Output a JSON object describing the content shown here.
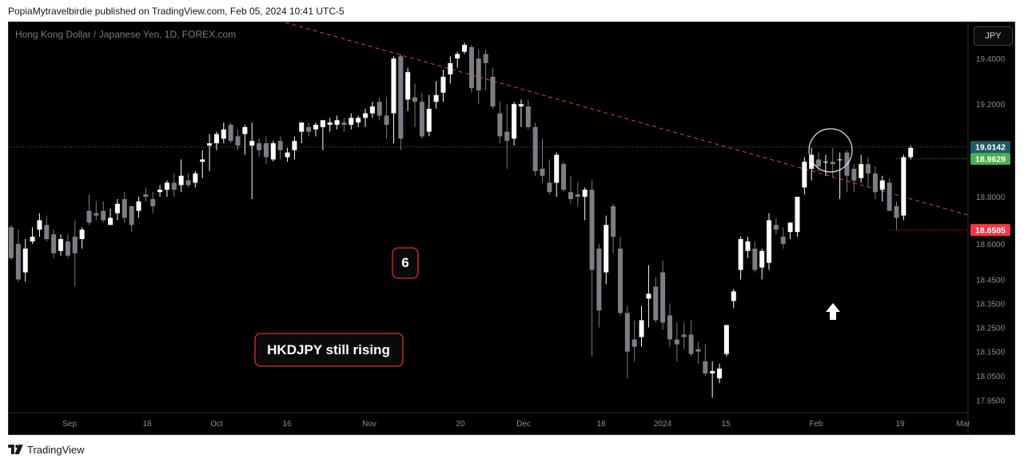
{
  "header": {
    "publisher_line": "PopiaMytravelbirdie published on TradingView.com, Feb 05, 2024 10:41 UTC-5"
  },
  "symbol_title": "Hong Kong Dollar / Japanese Yen, 1D, FOREX.com",
  "currency_button": "JPY",
  "footer": {
    "brand": "TradingView",
    "logo_icon": "tradingview-logo-icon"
  },
  "colors": {
    "background": "#000000",
    "candle_up": "#ffffff",
    "candle_down": "#7d7d85",
    "trendline": "#e0443a",
    "current_price_label": "#1e5a6b",
    "green_label": "#4caf50",
    "red_label": "#f23645",
    "annotation_border": "#e32b2b"
  },
  "chart_data": {
    "type": "candlestick",
    "title": "Hong Kong Dollar / Japanese Yen, 1D, FOREX.com",
    "ylim": [
      17.9,
      19.56
    ],
    "y_scale": "log",
    "y_ticks": [
      "19.4000",
      "19.2000",
      "18.8000",
      "18.6000",
      "18.4500",
      "18.3500",
      "18.2500",
      "18.1500",
      "18.0500",
      "17.9500"
    ],
    "x_ticks": [
      "Sep",
      "18",
      "Oct",
      "16",
      "Nov",
      "20",
      "Dec",
      "18",
      "2024",
      "15",
      "Feb",
      "19",
      "Mar"
    ],
    "price_labels": [
      {
        "text": "19.0142",
        "value": 19.0142,
        "role": "current"
      },
      {
        "text": "18.9629",
        "value": 18.9629,
        "role": "green"
      },
      {
        "text": "18.6585",
        "value": 18.6585,
        "role": "red"
      }
    ],
    "annotations": [
      {
        "text": "6"
      },
      {
        "text": "HKDJPY still rising"
      }
    ],
    "grid": false,
    "candles": [
      [
        18.67,
        18.68,
        18.53,
        18.54
      ],
      [
        18.6,
        18.66,
        18.44,
        18.45
      ],
      [
        18.48,
        18.62,
        18.44,
        18.58
      ],
      [
        18.61,
        18.67,
        18.6,
        18.63
      ],
      [
        18.66,
        18.73,
        18.63,
        18.7
      ],
      [
        18.68,
        18.72,
        18.61,
        18.62
      ],
      [
        18.64,
        18.66,
        18.54,
        18.56
      ],
      [
        18.57,
        18.64,
        18.55,
        18.62
      ],
      [
        18.61,
        18.64,
        18.54,
        18.55
      ],
      [
        18.63,
        18.7,
        18.42,
        18.56
      ],
      [
        18.62,
        18.67,
        18.58,
        18.66
      ],
      [
        18.74,
        18.81,
        18.68,
        18.69
      ],
      [
        18.73,
        18.78,
        18.7,
        18.72
      ],
      [
        18.74,
        18.78,
        18.69,
        18.7
      ],
      [
        18.68,
        18.75,
        18.69,
        18.71
      ],
      [
        18.73,
        18.79,
        18.7,
        18.77
      ],
      [
        18.79,
        18.82,
        18.69,
        18.71
      ],
      [
        18.76,
        18.76,
        18.65,
        18.68
      ],
      [
        18.74,
        18.8,
        18.71,
        18.78
      ],
      [
        18.81,
        18.84,
        18.78,
        18.8
      ],
      [
        18.79,
        18.82,
        18.73,
        18.76
      ],
      [
        18.82,
        18.85,
        18.8,
        18.83
      ],
      [
        18.83,
        18.87,
        18.8,
        18.86
      ],
      [
        18.86,
        18.9,
        18.8,
        18.83
      ],
      [
        18.85,
        18.96,
        18.82,
        18.89
      ],
      [
        18.87,
        18.9,
        18.84,
        18.85
      ],
      [
        18.86,
        18.91,
        18.84,
        18.9
      ],
      [
        18.95,
        19.0,
        18.88,
        18.96
      ],
      [
        19.02,
        19.07,
        18.91,
        19.03
      ],
      [
        19.03,
        19.08,
        19.0,
        19.07
      ],
      [
        19.05,
        19.12,
        19.03,
        19.09
      ],
      [
        19.11,
        19.12,
        19.03,
        19.04
      ],
      [
        19.06,
        19.09,
        19.0,
        19.02
      ],
      [
        19.07,
        19.11,
        18.98,
        19.1
      ],
      [
        19.02,
        19.12,
        18.79,
        19.04
      ],
      [
        19.03,
        19.05,
        18.97,
        19.0
      ],
      [
        19.03,
        19.06,
        18.94,
        18.97
      ],
      [
        18.96,
        19.04,
        18.95,
        19.03
      ],
      [
        19.04,
        19.06,
        18.96,
        19.0
      ],
      [
        18.97,
        19.01,
        18.95,
        18.99
      ],
      [
        19.0,
        19.06,
        18.96,
        19.04
      ],
      [
        19.08,
        19.11,
        19.03,
        19.12
      ],
      [
        19.1,
        19.12,
        19.06,
        19.08
      ],
      [
        19.09,
        19.12,
        19.06,
        19.11
      ],
      [
        19.1,
        19.13,
        19.0,
        19.13
      ],
      [
        19.11,
        19.14,
        19.08,
        19.12
      ],
      [
        19.11,
        19.15,
        19.09,
        19.13
      ],
      [
        19.12,
        19.14,
        19.08,
        19.11
      ],
      [
        19.11,
        19.16,
        19.09,
        19.14
      ],
      [
        19.12,
        19.15,
        19.1,
        19.14
      ],
      [
        19.14,
        19.18,
        19.1,
        19.16
      ],
      [
        19.16,
        19.21,
        19.14,
        19.19
      ],
      [
        19.21,
        19.23,
        19.13,
        19.15
      ],
      [
        19.15,
        19.23,
        19.05,
        19.11
      ],
      [
        19.16,
        19.41,
        19.03,
        19.4
      ],
      [
        19.41,
        19.42,
        19.0,
        19.05
      ],
      [
        19.22,
        19.36,
        19.17,
        19.34
      ],
      [
        19.23,
        19.29,
        19.1,
        19.21
      ],
      [
        19.21,
        19.25,
        19.05,
        19.06
      ],
      [
        19.08,
        19.24,
        19.06,
        19.18
      ],
      [
        19.21,
        19.3,
        19.18,
        19.24
      ],
      [
        19.25,
        19.35,
        19.21,
        19.32
      ],
      [
        19.33,
        19.41,
        19.29,
        19.38
      ],
      [
        19.4,
        19.43,
        19.36,
        19.42
      ],
      [
        19.43,
        19.47,
        19.42,
        19.46
      ],
      [
        19.45,
        19.46,
        19.25,
        19.27
      ],
      [
        19.4,
        19.44,
        19.2,
        19.26
      ],
      [
        19.42,
        19.44,
        19.26,
        19.38
      ],
      [
        19.32,
        19.36,
        19.18,
        19.19
      ],
      [
        19.16,
        19.21,
        19.03,
        19.06
      ],
      [
        19.08,
        19.2,
        18.92,
        19.04
      ],
      [
        19.05,
        19.21,
        19.02,
        19.2
      ],
      [
        19.19,
        19.22,
        19.1,
        19.2
      ],
      [
        19.19,
        19.22,
        19.09,
        19.1
      ],
      [
        19.1,
        19.12,
        18.89,
        18.91
      ],
      [
        18.92,
        19.05,
        18.86,
        18.89
      ],
      [
        18.86,
        18.96,
        18.81,
        18.82
      ],
      [
        18.86,
        18.99,
        18.8,
        18.98
      ],
      [
        18.94,
        18.95,
        18.82,
        18.83
      ],
      [
        18.82,
        18.89,
        18.77,
        18.79
      ],
      [
        18.81,
        18.86,
        18.76,
        18.8
      ],
      [
        18.8,
        18.84,
        18.7,
        18.83
      ],
      [
        18.83,
        18.87,
        18.13,
        18.49
      ],
      [
        18.58,
        18.6,
        18.25,
        18.32
      ],
      [
        18.48,
        18.72,
        18.43,
        18.68
      ],
      [
        18.76,
        18.77,
        18.56,
        18.63
      ],
      [
        18.58,
        18.63,
        18.3,
        18.31
      ],
      [
        18.31,
        18.34,
        18.04,
        18.15
      ],
      [
        18.2,
        18.28,
        18.11,
        18.17
      ],
      [
        18.21,
        18.34,
        18.17,
        18.28
      ],
      [
        18.37,
        18.51,
        18.25,
        18.39
      ],
      [
        18.42,
        18.46,
        18.27,
        18.28
      ],
      [
        18.48,
        18.53,
        18.24,
        18.27
      ],
      [
        18.3,
        18.35,
        18.17,
        18.2
      ],
      [
        18.2,
        18.27,
        18.11,
        18.18
      ],
      [
        18.22,
        18.27,
        18.16,
        18.21
      ],
      [
        18.22,
        18.28,
        18.13,
        18.14
      ],
      [
        18.16,
        18.19,
        18.1,
        18.15
      ],
      [
        18.11,
        18.18,
        18.05,
        18.06
      ],
      [
        18.06,
        18.11,
        17.96,
        18.07
      ],
      [
        18.04,
        18.1,
        18.02,
        18.08
      ],
      [
        18.14,
        18.26,
        18.13,
        18.26
      ],
      [
        18.36,
        18.41,
        18.33,
        18.4
      ],
      [
        18.49,
        18.63,
        18.45,
        18.62
      ],
      [
        18.57,
        18.63,
        18.54,
        18.61
      ],
      [
        18.58,
        18.61,
        18.48,
        18.49
      ],
      [
        18.5,
        18.58,
        18.45,
        18.57
      ],
      [
        18.52,
        18.73,
        18.49,
        18.7
      ],
      [
        18.68,
        18.71,
        18.64,
        18.66
      ],
      [
        18.63,
        18.67,
        18.58,
        18.6
      ],
      [
        18.65,
        18.69,
        18.62,
        18.69
      ],
      [
        18.65,
        18.8,
        18.63,
        18.8
      ],
      [
        18.84,
        18.97,
        18.81,
        18.95
      ],
      [
        18.92,
        19.01,
        18.87,
        18.98
      ],
      [
        18.96,
        18.99,
        18.91,
        18.93
      ],
      [
        18.95,
        18.98,
        18.89,
        18.95
      ],
      [
        18.95,
        19.01,
        18.88,
        18.94
      ],
      [
        18.96,
        18.99,
        18.79,
        18.96
      ],
      [
        18.99,
        19.0,
        18.82,
        18.89
      ],
      [
        18.92,
        18.94,
        18.82,
        18.87
      ],
      [
        18.88,
        18.98,
        18.86,
        18.94
      ],
      [
        18.94,
        18.97,
        18.84,
        18.9
      ],
      [
        18.9,
        18.93,
        18.79,
        18.82
      ],
      [
        18.83,
        18.89,
        18.78,
        18.87
      ],
      [
        18.86,
        18.88,
        18.74,
        18.74
      ],
      [
        18.76,
        18.78,
        18.66,
        18.71
      ],
      [
        18.72,
        18.98,
        18.7,
        18.97
      ],
      [
        18.97,
        19.02,
        18.96,
        19.01
      ]
    ]
  }
}
